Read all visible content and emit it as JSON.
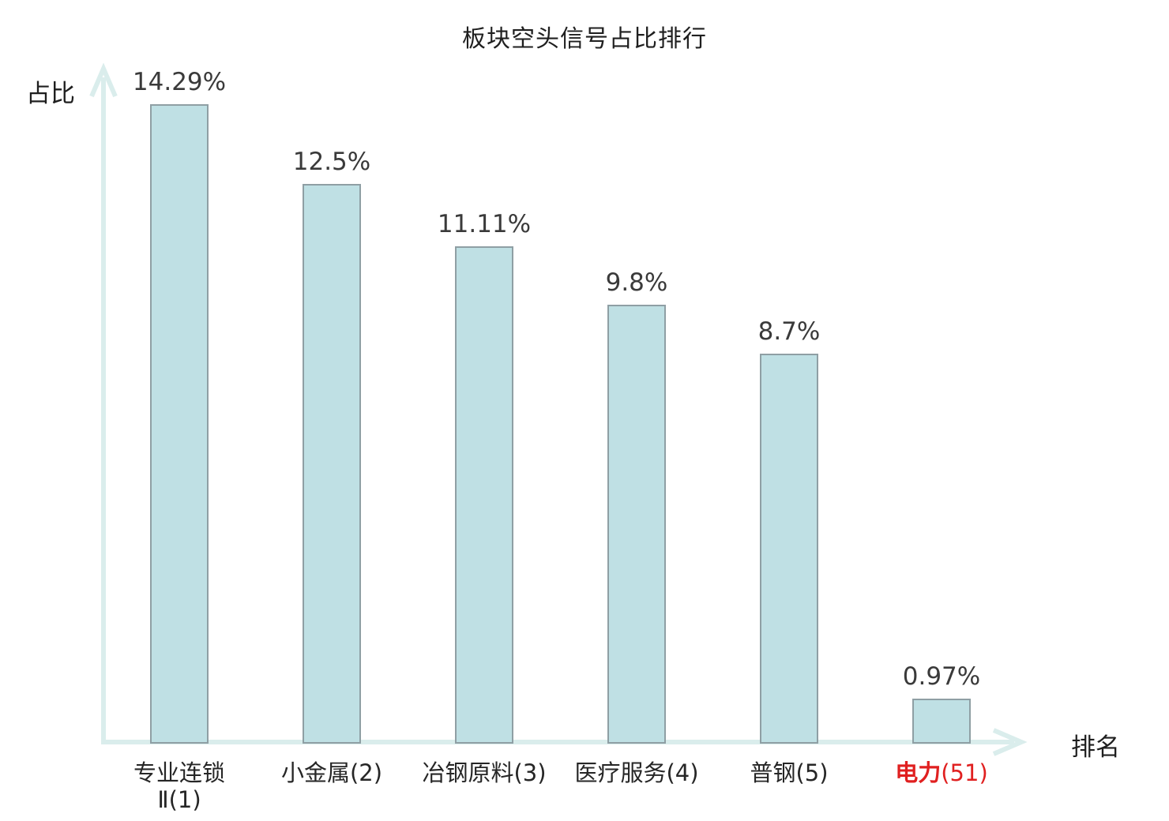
{
  "chart_data": {
    "type": "bar",
    "title": "板块空头信号占比排行",
    "xlabel": "排名",
    "ylabel": "占比",
    "categories": [
      {
        "lines": [
          "专业连锁",
          "Ⅱ(1)"
        ]
      },
      {
        "lines": [
          "小金属(2)"
        ]
      },
      {
        "lines": [
          "冶钢原料(3)"
        ]
      },
      {
        "lines": [
          "医疗服务(4)"
        ]
      },
      {
        "lines": [
          "普钢(5)"
        ]
      },
      {
        "lines": [
          "电力(51)"
        ],
        "highlight": true,
        "bold_text": "电力"
      }
    ],
    "values": [
      14.29,
      12.5,
      11.11,
      9.8,
      8.7,
      0.97
    ],
    "value_labels": [
      "14.29%",
      "12.5%",
      "11.11%",
      "9.8%",
      "8.7%",
      "0.97%"
    ],
    "ylim": [
      0,
      15
    ],
    "grid": false,
    "legend": null,
    "colors": {
      "bar_fill": "#bfe0e4",
      "bar_border": "#8f9fa4",
      "axis": "#daedec",
      "value_text": "#3a3a3a",
      "category_text": "#262626",
      "highlight_text": "#e02020",
      "title_text": "#1f1f1f"
    }
  }
}
